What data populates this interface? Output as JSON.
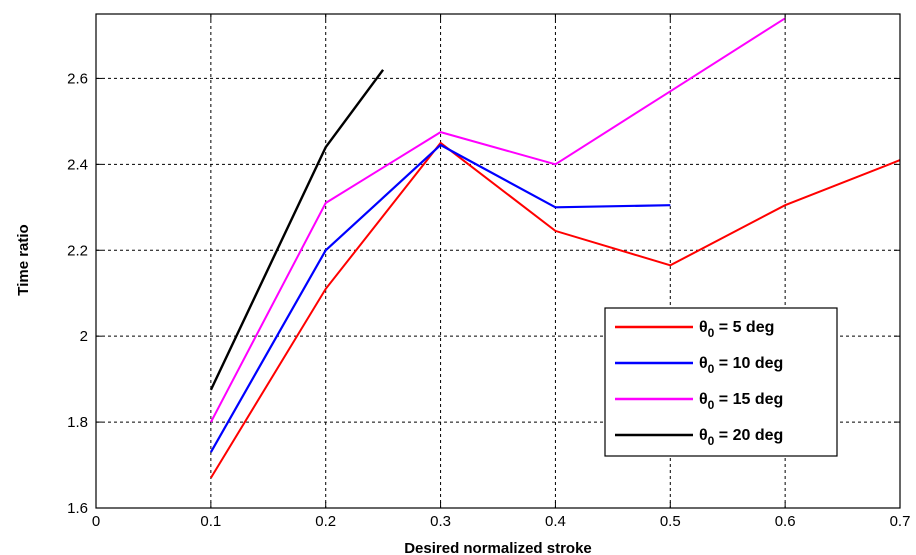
{
  "chart_data": {
    "type": "line",
    "title": "",
    "xlabel": "Desired normalized stroke",
    "ylabel": "Time ratio",
    "xlim": [
      0,
      0.7
    ],
    "ylim": [
      1.6,
      2.75
    ],
    "xticks": [
      "0",
      "0.1",
      "0.2",
      "0.3",
      "0.4",
      "0.5",
      "0.6",
      "0.7"
    ],
    "yticks": [
      "1.6",
      "1.8",
      "2",
      "2.2",
      "2.4",
      "2.6"
    ],
    "grid": true,
    "legend_position": "lower-right",
    "series": [
      {
        "name": "θ0 = 5 deg",
        "legend": {
          "symbol": "θ",
          "subscript": "0",
          "text": " = 5 deg"
        },
        "color": "#ff0000",
        "x": [
          0.1,
          0.2,
          0.3,
          0.4,
          0.5,
          0.6,
          0.7
        ],
        "y": [
          1.67,
          2.11,
          2.45,
          2.245,
          2.165,
          2.305,
          2.41
        ]
      },
      {
        "name": "θ0 = 10 deg",
        "legend": {
          "symbol": "θ",
          "subscript": "0",
          "text": " = 10 deg"
        },
        "color": "#0000ff",
        "x": [
          0.1,
          0.2,
          0.3,
          0.4,
          0.5
        ],
        "y": [
          1.73,
          2.2,
          2.445,
          2.3,
          2.305
        ]
      },
      {
        "name": "θ0 = 15 deg",
        "legend": {
          "symbol": "θ",
          "subscript": "0",
          "text": " = 15 deg"
        },
        "color": "#ff00ff",
        "x": [
          0.1,
          0.2,
          0.3,
          0.4,
          0.5,
          0.6
        ],
        "y": [
          1.8,
          2.31,
          2.475,
          2.4,
          2.57,
          2.74
        ]
      },
      {
        "name": "θ0 = 20 deg",
        "legend": {
          "symbol": "θ",
          "subscript": "0",
          "text": " = 20 deg"
        },
        "color": "#000000",
        "x": [
          0.1,
          0.2,
          0.25
        ],
        "y": [
          1.875,
          2.44,
          2.62
        ]
      }
    ]
  }
}
